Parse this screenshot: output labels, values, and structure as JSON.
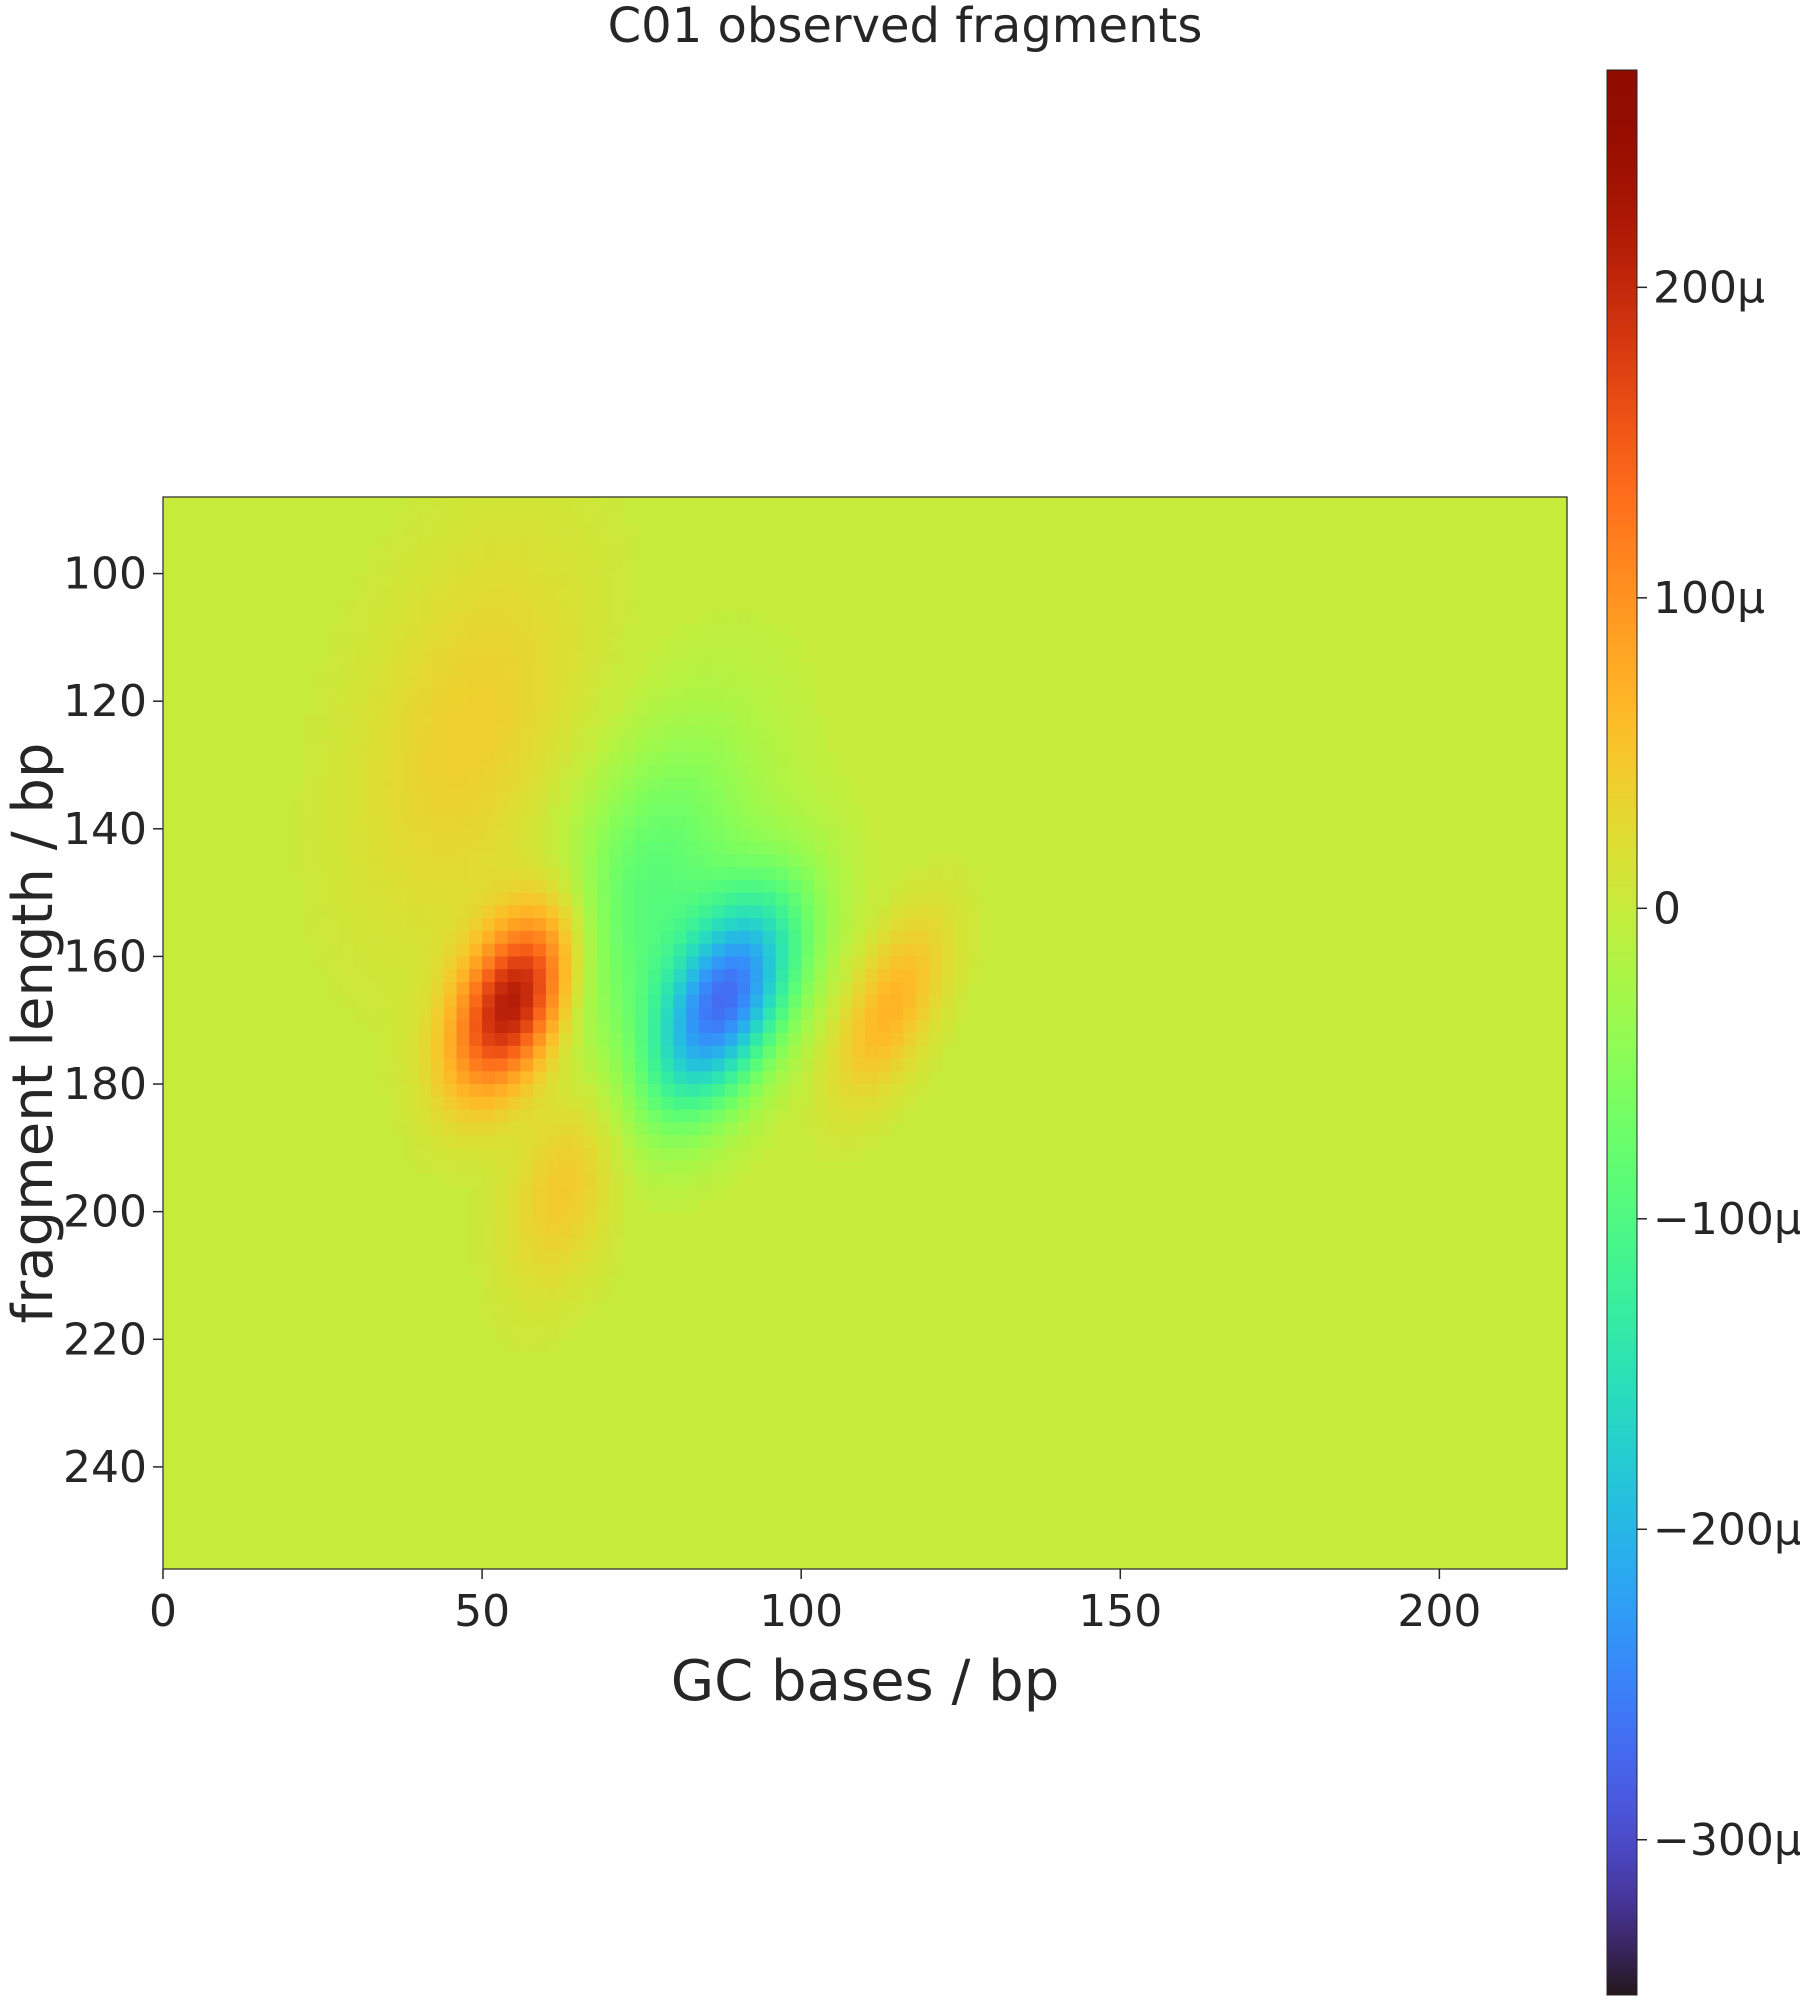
{
  "chart_data": {
    "type": "heatmap",
    "title": "C01 observed fragments",
    "xlabel": "GC bases / bp",
    "ylabel": "fragment length / bp",
    "xlim": [
      0,
      220
    ],
    "ylim": [
      256,
      88
    ],
    "x_ticks": [
      0,
      50,
      100,
      150,
      200
    ],
    "x_tick_labels": [
      "0",
      "50",
      "100",
      "150",
      "200"
    ],
    "y_ticks": [
      100,
      120,
      140,
      160,
      180,
      200,
      220,
      240
    ],
    "y_tick_labels": [
      "100",
      "120",
      "140",
      "160",
      "180",
      "200",
      "220",
      "240"
    ],
    "grid": false,
    "colormap": "turbo",
    "colorbar": {
      "range": [
        -0.00035,
        0.00027
      ],
      "ticks": [
        0.0002,
        0.0001,
        0,
        -0.0001,
        -0.0002,
        -0.0003
      ],
      "tick_labels": [
        "200μ",
        "100μ",
        "0",
        "−100μ",
        "−200μ",
        "−300μ"
      ]
    },
    "background_value": 0,
    "features": [
      {
        "kind": "positive",
        "center": [
          55,
          167
        ],
        "spread": [
          6,
          10
        ],
        "tilt": -0.3,
        "peak": 0.00023
      },
      {
        "kind": "positive",
        "center": [
          48,
          125
        ],
        "spread": [
          12,
          22
        ],
        "tilt": -0.2,
        "peak": 4e-05
      },
      {
        "kind": "negative",
        "center": [
          88,
          167
        ],
        "spread": [
          7,
          12
        ],
        "tilt": -0.35,
        "peak": -0.00026
      },
      {
        "kind": "negative",
        "center": [
          75,
          150
        ],
        "spread": [
          10,
          18
        ],
        "tilt": -0.3,
        "peak": -9e-05
      },
      {
        "kind": "positive",
        "center": [
          114,
          168
        ],
        "spread": [
          5,
          10
        ],
        "tilt": -0.35,
        "peak": 7e-05
      },
      {
        "kind": "positive",
        "center": [
          63,
          195
        ],
        "spread": [
          6,
          12
        ],
        "tilt": -0.2,
        "peak": 5e-05
      }
    ]
  }
}
